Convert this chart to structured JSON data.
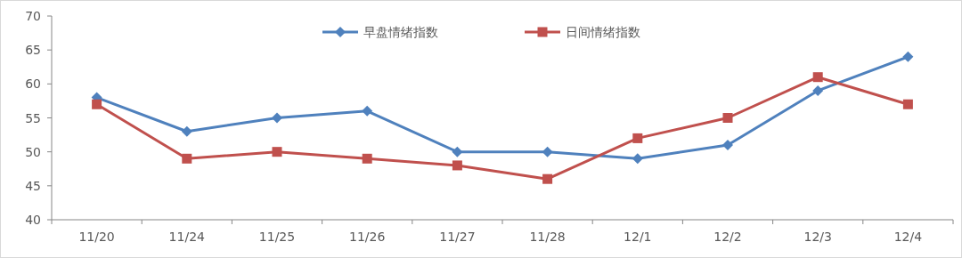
{
  "chart_data": {
    "type": "line",
    "categories": [
      "11/20",
      "11/24",
      "11/25",
      "11/26",
      "11/27",
      "11/28",
      "12/1",
      "12/2",
      "12/3",
      "12/4"
    ],
    "series": [
      {
        "name": "早盘情绪指数",
        "color": "#4f81bd",
        "marker": "diamond",
        "values": [
          58,
          53,
          55,
          56,
          50,
          50,
          49,
          51,
          59,
          64
        ]
      },
      {
        "name": "日间情绪指数",
        "color": "#c0504d",
        "marker": "square",
        "values": [
          57,
          49,
          50,
          49,
          48,
          46,
          52,
          55,
          61,
          57
        ]
      }
    ],
    "ylim": [
      40,
      70
    ],
    "yticks": [
      40,
      45,
      50,
      55,
      60,
      65,
      70
    ],
    "legend": "top",
    "line_style": "solid"
  }
}
